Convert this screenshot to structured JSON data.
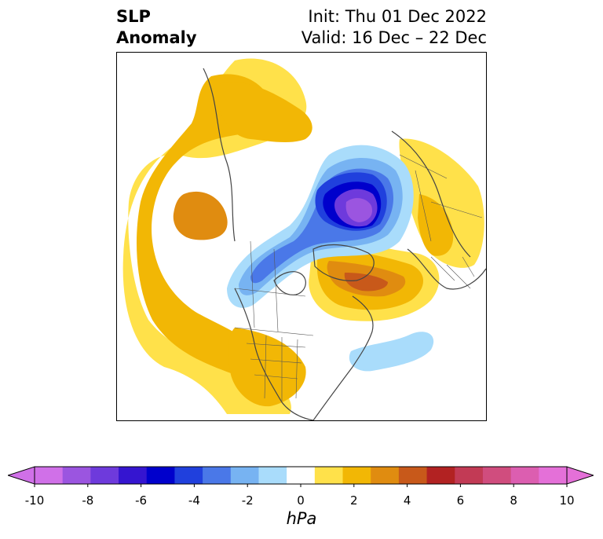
{
  "title": {
    "variable_line1": "SLP",
    "variable_line2": "Anomaly",
    "init": "Init: Thu 01 Dec 2022",
    "valid": "Valid: 16 Dec – 22 Dec"
  },
  "colorbar": {
    "unit_label": "hPa",
    "ticks": [
      "-10",
      "-8",
      "-6",
      "-4",
      "-2",
      "0",
      "2",
      "4",
      "6",
      "8",
      "10"
    ],
    "tick_values": [
      -10,
      -8,
      -6,
      -4,
      -2,
      0,
      2,
      4,
      6,
      8,
      10
    ],
    "colors": [
      "#d070e8",
      "#9b55e0",
      "#6e3adc",
      "#3515d0",
      "#0000cc",
      "#2040dd",
      "#4a78e8",
      "#77b3f2",
      "#a9dcfb",
      "#ffffff",
      "#ffe14a",
      "#f2b705",
      "#e08c10",
      "#c8591a",
      "#b22222",
      "#c23a55",
      "#d04d7e",
      "#dc5eb0",
      "#e470d8"
    ],
    "under_color": "#d070e8",
    "over_color": "#e470d8"
  }
}
